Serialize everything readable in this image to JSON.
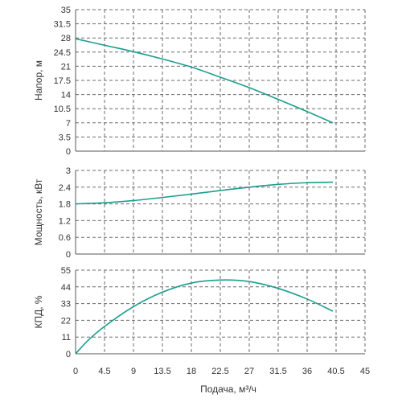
{
  "chart_data": [
    {
      "type": "line",
      "xlabel": "",
      "ylabel": "Напор, м",
      "xlim": [
        0,
        45
      ],
      "ylim": [
        0,
        35
      ],
      "x_ticks": [
        "0",
        "4.5",
        "9",
        "13.5",
        "18",
        "22.5",
        "27",
        "31.5",
        "36",
        "40.5",
        "45"
      ],
      "y_ticks": [
        "0",
        "3.5",
        "7",
        "10.5",
        "14",
        "17.5",
        "21",
        "24.5",
        "28",
        "31.5",
        "35"
      ],
      "grid": true,
      "series": [
        {
          "color": "#1a9e8f",
          "x": [
            0,
            4.5,
            9,
            13.5,
            18,
            22.5,
            27,
            31.5,
            36,
            40
          ],
          "y": [
            27.8,
            26.2,
            24.6,
            22.8,
            20.8,
            18.3,
            15.7,
            12.8,
            9.8,
            7.0
          ]
        }
      ]
    },
    {
      "type": "line",
      "xlabel": "",
      "ylabel": "Мощность, кВт",
      "xlim": [
        0,
        45
      ],
      "ylim": [
        0,
        3
      ],
      "x_ticks": [],
      "y_ticks": [
        "0",
        "0.6",
        "1.2",
        "1.8",
        "2.4",
        "3"
      ],
      "grid": true,
      "series": [
        {
          "color": "#1a9e8f",
          "x": [
            0,
            4.5,
            9,
            13.5,
            18,
            22.5,
            27,
            31.5,
            36,
            40
          ],
          "y": [
            1.8,
            1.84,
            1.92,
            2.03,
            2.15,
            2.28,
            2.4,
            2.5,
            2.56,
            2.58
          ]
        }
      ]
    },
    {
      "type": "line",
      "xlabel": "Подача, м³/ч",
      "ylabel": "КПД, %",
      "xlim": [
        0,
        45
      ],
      "ylim": [
        0,
        55
      ],
      "x_ticks": [
        "0",
        "4.5",
        "9",
        "13.5",
        "18",
        "22.5",
        "27",
        "31.5",
        "36",
        "40.5",
        "45"
      ],
      "y_ticks": [
        "0",
        "11",
        "22",
        "33",
        "44",
        "55"
      ],
      "grid": true,
      "series": [
        {
          "color": "#1a9e8f",
          "x": [
            0,
            2,
            4.5,
            9,
            13.5,
            18,
            22.5,
            27,
            31.5,
            36,
            40
          ],
          "y": [
            0,
            9,
            18,
            31,
            40.5,
            46.5,
            48.5,
            47.5,
            43,
            36,
            28
          ]
        }
      ]
    }
  ]
}
